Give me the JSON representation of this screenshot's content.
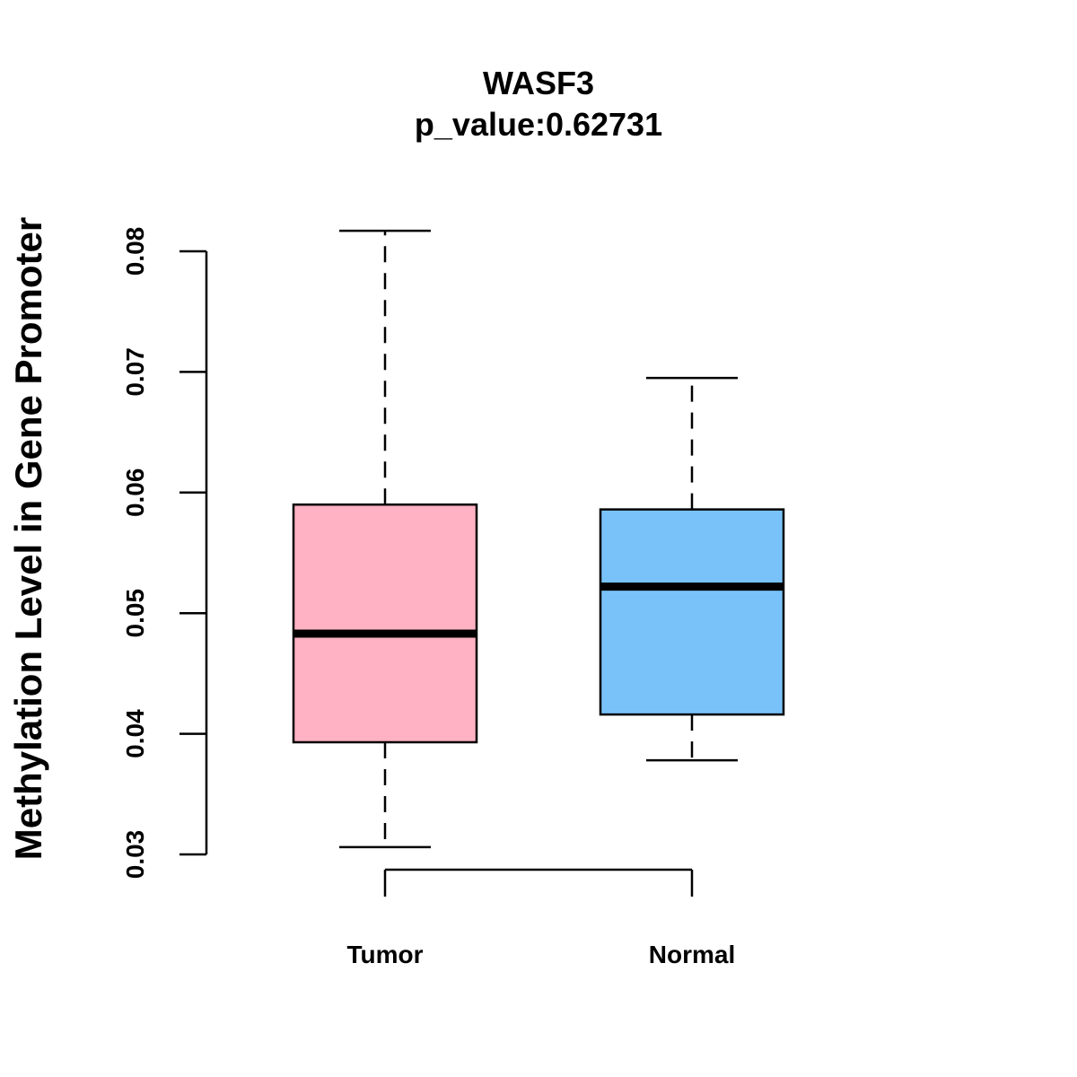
{
  "chart_data": {
    "type": "boxplot",
    "title": "WASF3",
    "subtitle": "p_value:0.62731",
    "xlabel": "",
    "ylabel": "Methylation Level in Gene Promoter",
    "ylim": [
      0.03,
      0.08
    ],
    "yticks": [
      0.03,
      0.04,
      0.05,
      0.06,
      0.07,
      0.08
    ],
    "ytick_labels": [
      "0.03",
      "0.04",
      "0.05",
      "0.06",
      "0.07",
      "0.08"
    ],
    "grid": false,
    "categories": [
      "Tumor",
      "Normal"
    ],
    "boxes": [
      {
        "name": "Tumor",
        "min": 0.0306,
        "q1": 0.0393,
        "median": 0.0483,
        "q3": 0.059,
        "max": 0.0817,
        "color": "#FFB2C3"
      },
      {
        "name": "Normal",
        "min": 0.0378,
        "q1": 0.0416,
        "median": 0.0522,
        "q3": 0.0586,
        "max": 0.0695,
        "color": "#79C2F9"
      }
    ]
  }
}
